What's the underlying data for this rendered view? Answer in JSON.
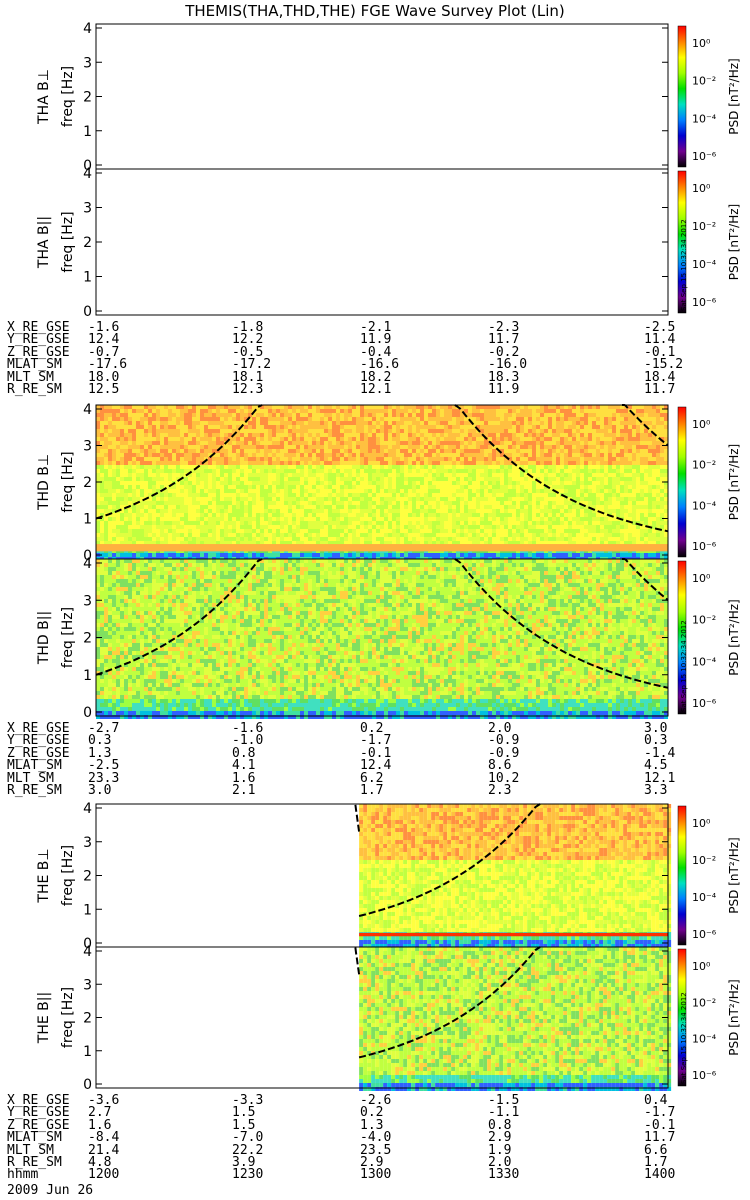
{
  "title": "THEMIS(THA,THD,THE) FGE Wave Survey Plot (Lin)",
  "date": "2009 Jun 26",
  "stamp": "Sat Sep 15 10:32:34 2012",
  "colorbar": {
    "label": "PSD [nT²/Hz]",
    "ticks": [
      "10⁰",
      "10⁻²",
      "10⁻⁴",
      "10⁻⁶"
    ],
    "colors": [
      "#ff0000",
      "#ff8000",
      "#ffff00",
      "#a0ff00",
      "#00e000",
      "#00e0c0",
      "#0080ff",
      "#0000d0",
      "#700090",
      "#000000"
    ]
  },
  "yaxis": {
    "label": "freq [Hz]",
    "ticks": [
      "0",
      "1",
      "2",
      "3",
      "4"
    ],
    "range": [
      0,
      4
    ]
  },
  "chart_data": [
    {
      "type": "heatmap",
      "panel": "THA B⊥",
      "ylabel": "THA B⊥",
      "data": "empty"
    },
    {
      "type": "heatmap",
      "panel": "THA B||",
      "ylabel": "THA B||",
      "data": "empty"
    },
    {
      "type": "heatmap",
      "panel": "THD B⊥",
      "ylabel": "THD B⊥",
      "data": "full",
      "background_band_hz": [
        0.1,
        0.3
      ]
    },
    {
      "type": "heatmap",
      "panel": "THD B||",
      "ylabel": "THD B||",
      "data": "full"
    },
    {
      "type": "heatmap",
      "panel": "THE B⊥",
      "ylabel": "THE B⊥",
      "data": "partial",
      "data_start_fraction": 0.46,
      "band_hz": [
        0.2,
        0.3
      ]
    },
    {
      "type": "heatmap",
      "panel": "THE B||",
      "ylabel": "THE B||",
      "data": "partial",
      "data_start_fraction": 0.46
    }
  ],
  "ephem": [
    {
      "rows": [
        {
          "label": "X_RE_GSE",
          "values": [
            "-1.6",
            "-1.8",
            "-2.1",
            "-2.3",
            "-2.5"
          ]
        },
        {
          "label": "Y_RE_GSE",
          "values": [
            "12.4",
            "12.2",
            "11.9",
            "11.7",
            "11.4"
          ]
        },
        {
          "label": "Z_RE_GSE",
          "values": [
            "-0.7",
            "-0.5",
            "-0.4",
            "-0.2",
            "-0.1"
          ]
        },
        {
          "label": "MLAT_SM",
          "values": [
            "-17.6",
            "-17.2",
            "-16.6",
            "-16.0",
            "-15.2"
          ]
        },
        {
          "label": "MLT_SM",
          "values": [
            "18.0",
            "18.1",
            "18.2",
            "18.3",
            "18.4"
          ]
        },
        {
          "label": "R_RE_SM",
          "values": [
            "12.5",
            "12.3",
            "12.1",
            "11.9",
            "11.7"
          ]
        }
      ]
    },
    {
      "rows": [
        {
          "label": "X_RE_GSE",
          "values": [
            "-2.7",
            "-1.6",
            "0.2",
            "2.0",
            "3.0"
          ]
        },
        {
          "label": "Y_RE_GSE",
          "values": [
            "0.3",
            "-1.0",
            "-1.7",
            "-0.9",
            "0.3"
          ]
        },
        {
          "label": "Z_RE_GSE",
          "values": [
            "1.3",
            "0.8",
            "-0.1",
            "-0.9",
            "-1.4"
          ]
        },
        {
          "label": "MLAT_SM",
          "values": [
            "-2.5",
            "4.1",
            "12.4",
            "8.6",
            "4.5"
          ]
        },
        {
          "label": "MLT_SM",
          "values": [
            "23.3",
            "1.6",
            "6.2",
            "10.2",
            "12.1"
          ]
        },
        {
          "label": "R_RE_SM",
          "values": [
            "3.0",
            "2.1",
            "1.7",
            "2.3",
            "3.3"
          ]
        }
      ]
    },
    {
      "rows": [
        {
          "label": "X_RE_GSE",
          "values": [
            "-3.6",
            "-3.3",
            "-2.6",
            "-1.5",
            "0.4"
          ]
        },
        {
          "label": "Y_RE_GSE",
          "values": [
            "2.7",
            "1.5",
            "0.2",
            "-1.1",
            "-1.7"
          ]
        },
        {
          "label": "Z_RE_GSE",
          "values": [
            "1.6",
            "1.5",
            "1.3",
            "0.8",
            "-0.1"
          ]
        },
        {
          "label": "MLAT_SM",
          "values": [
            "-8.4",
            "-7.0",
            "-4.0",
            "2.9",
            "11.7"
          ]
        },
        {
          "label": "MLT_SM",
          "values": [
            "21.4",
            "22.2",
            "23.5",
            "1.9",
            "6.6"
          ]
        },
        {
          "label": "R_RE_SM",
          "values": [
            "4.8",
            "3.9",
            "2.9",
            "2.0",
            "1.7"
          ]
        },
        {
          "label": "hhmm",
          "values": [
            "1200",
            "1230",
            "1300",
            "1330",
            "1400"
          ]
        }
      ]
    }
  ]
}
